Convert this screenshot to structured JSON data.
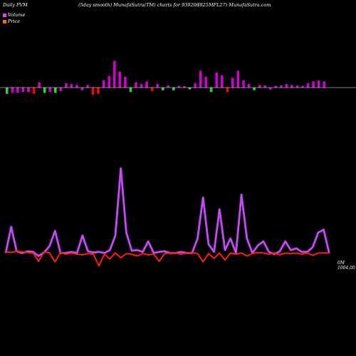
{
  "header": {
    "left": "Daily PVM",
    "middle": "(5day smooth) MunafaSutra(TM) charts for 939206",
    "right": "(825MFL27) MunafaSutra.com"
  },
  "legend": {
    "volume_label": "Volume",
    "price_label": "Price",
    "volume_color": "#e040fb",
    "price_color": "#ff6a00"
  },
  "right_axis": {
    "upper": "0M",
    "lower": "1004.00"
  },
  "colors": {
    "bar_up": "#d000d0",
    "bar_down_green": "#33cc33",
    "bar_red": "#ff0000",
    "volume_line": "#d050ff",
    "price_line": "#ff2200",
    "baseline": "#ffffff"
  },
  "chart_data": {
    "type": "line",
    "title": "",
    "xlabel": "",
    "ylabel": "",
    "bars": [
      {
        "v": -0.35,
        "c": "green"
      },
      {
        "v": -0.3,
        "c": "magenta"
      },
      {
        "v": -0.3,
        "c": "magenta"
      },
      {
        "v": -0.25,
        "c": "magenta"
      },
      {
        "v": -0.25,
        "c": "magenta"
      },
      {
        "v": -0.35,
        "c": "red"
      },
      {
        "v": 0.3,
        "c": "magenta"
      },
      {
        "v": -0.3,
        "c": "green"
      },
      {
        "v": -0.25,
        "c": "magenta"
      },
      {
        "v": -0.3,
        "c": "green"
      },
      {
        "v": -0.2,
        "c": "magenta"
      },
      {
        "v": 0.25,
        "c": "magenta"
      },
      {
        "v": 0.2,
        "c": "magenta"
      },
      {
        "v": 0.15,
        "c": "magenta"
      },
      {
        "v": -0.15,
        "c": "magenta"
      },
      {
        "v": 0.15,
        "c": "magenta"
      },
      {
        "v": -0.4,
        "c": "red"
      },
      {
        "v": -0.35,
        "c": "red"
      },
      {
        "v": 0.4,
        "c": "magenta"
      },
      {
        "v": 0.65,
        "c": "magenta"
      },
      {
        "v": 1.5,
        "c": "magenta"
      },
      {
        "v": 0.9,
        "c": "magenta"
      },
      {
        "v": 0.6,
        "c": "magenta"
      },
      {
        "v": -0.25,
        "c": "green"
      },
      {
        "v": 0.3,
        "c": "magenta"
      },
      {
        "v": 0.2,
        "c": "magenta"
      },
      {
        "v": 0.35,
        "c": "magenta"
      },
      {
        "v": -0.2,
        "c": "red"
      },
      {
        "v": 0.2,
        "c": "magenta"
      },
      {
        "v": -0.15,
        "c": "green"
      },
      {
        "v": 0.12,
        "c": "magenta"
      },
      {
        "v": -0.15,
        "c": "green"
      },
      {
        "v": 0.1,
        "c": "magenta"
      },
      {
        "v": 0.08,
        "c": "magenta"
      },
      {
        "v": -0.1,
        "c": "green"
      },
      {
        "v": 0.25,
        "c": "magenta"
      },
      {
        "v": 0.95,
        "c": "magenta"
      },
      {
        "v": 0.6,
        "c": "magenta"
      },
      {
        "v": -0.25,
        "c": "green"
      },
      {
        "v": 0.85,
        "c": "magenta"
      },
      {
        "v": 0.7,
        "c": "magenta"
      },
      {
        "v": -0.25,
        "c": "red"
      },
      {
        "v": 0.55,
        "c": "magenta"
      },
      {
        "v": 0.95,
        "c": "magenta"
      },
      {
        "v": 0.4,
        "c": "magenta"
      },
      {
        "v": 0.2,
        "c": "magenta"
      },
      {
        "v": -0.15,
        "c": "green"
      },
      {
        "v": 0.15,
        "c": "magenta"
      },
      {
        "v": 0.12,
        "c": "magenta"
      },
      {
        "v": -0.12,
        "c": "magenta"
      },
      {
        "v": 0.1,
        "c": "magenta"
      },
      {
        "v": 0.12,
        "c": "magenta"
      },
      {
        "v": 0.2,
        "c": "magenta"
      },
      {
        "v": 0.15,
        "c": "magenta"
      },
      {
        "v": 0.12,
        "c": "magenta"
      },
      {
        "v": 0.1,
        "c": "magenta"
      },
      {
        "v": 0.25,
        "c": "magenta"
      },
      {
        "v": 0.35,
        "c": "magenta"
      },
      {
        "v": 0.4,
        "c": "magenta"
      },
      {
        "v": 0.35,
        "c": "magenta"
      }
    ],
    "series": [
      {
        "role": "volume",
        "values": [
          3.0,
          7.5,
          3.3,
          3.0,
          3.3,
          3.2,
          2.5,
          3.1,
          4.2,
          6.8,
          3.0,
          3.0,
          3.2,
          3.0,
          6.0,
          3.3,
          3.1,
          3.2,
          3.0,
          3.5,
          6.0,
          17.5,
          6.5,
          3.4,
          3.5,
          3.2,
          5.0,
          3.0,
          3.2,
          3.3,
          3.0,
          3.0,
          3.2,
          3.0,
          3.0,
          5.5,
          12.5,
          4.5,
          3.2,
          10.5,
          3.5,
          5.5,
          3.0,
          13.0,
          5.5,
          3.0,
          4.3,
          5.0,
          3.2,
          2.8,
          3.3,
          5.0,
          3.5,
          3.8,
          3.2,
          3.2,
          4.0,
          6.5,
          7.0,
          3.0
        ]
      },
      {
        "role": "price",
        "values": [
          3.2,
          3.1,
          3.3,
          3.2,
          3.1,
          3.0,
          1.6,
          3.2,
          3.0,
          1.5,
          3.1,
          2.8,
          3.0,
          2.8,
          2.7,
          2.9,
          2.8,
          0.8,
          2.8,
          2.0,
          3.0,
          2.2,
          2.9,
          2.8,
          2.5,
          2.9,
          2.7,
          2.8,
          1.6,
          2.9,
          3.0,
          3.0,
          2.8,
          3.0,
          3.1,
          2.9,
          1.5,
          2.9,
          2.1,
          3.0,
          1.8,
          3.0,
          2.8,
          3.0,
          2.5,
          2.9,
          3.1,
          3.0,
          2.8,
          3.0,
          2.7,
          3.0,
          2.9,
          3.0,
          2.8,
          3.0,
          2.6,
          3.0,
          3.0,
          3.0
        ]
      }
    ]
  }
}
